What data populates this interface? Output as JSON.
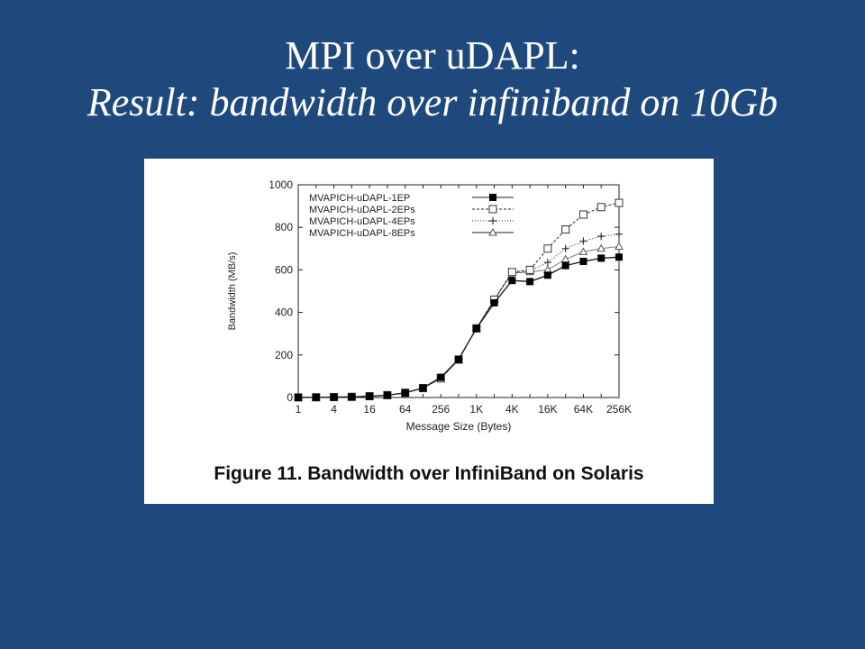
{
  "slide": {
    "title_line1": "MPI over uDAPL:",
    "title_line2": "Result: bandwidth over infiniband on 10Gb"
  },
  "figure": {
    "caption": "Figure 11. Bandwidth over InfiniBand on Solaris"
  },
  "chart_data": {
    "type": "line",
    "xlabel": "Message Size (Bytes)",
    "ylabel": "Bandwidth (MB/s)",
    "ylim": [
      0,
      1000
    ],
    "yticks": [
      0,
      200,
      400,
      600,
      800,
      1000
    ],
    "x": [
      "1",
      "2",
      "4",
      "8",
      "16",
      "32",
      "64",
      "128",
      "256",
      "512",
      "1K",
      "2K",
      "4K",
      "8K",
      "16K",
      "32K",
      "64K",
      "128K",
      "256K"
    ],
    "xtick_labels": [
      "1",
      "4",
      "16",
      "64",
      "256",
      "1K",
      "4K",
      "16K",
      "64K",
      "256K"
    ],
    "grid": false,
    "legend_position": "top-left",
    "series": [
      {
        "name": "MVAPICH-uDAPL-1EP",
        "marker": "filled-square",
        "dash": "solid",
        "values": [
          0.5,
          1,
          2,
          3,
          6,
          11,
          22,
          45,
          95,
          180,
          325,
          445,
          550,
          545,
          575,
          620,
          640,
          655,
          660
        ]
      },
      {
        "name": "MVAPICH-uDAPL-2EPs",
        "marker": "open-square",
        "dash": "dashed",
        "values": [
          0.5,
          1,
          2,
          3,
          6,
          11,
          22,
          44,
          90,
          178,
          325,
          460,
          590,
          600,
          700,
          790,
          860,
          895,
          915
        ]
      },
      {
        "name": "MVAPICH-uDAPL-4EPs",
        "marker": "plus",
        "dash": "dotted",
        "values": [
          0.5,
          1,
          2,
          3,
          6,
          11,
          22,
          44,
          90,
          178,
          325,
          460,
          585,
          595,
          635,
          700,
          735,
          758,
          768
        ]
      },
      {
        "name": "MVAPICH-uDAPL-8EPs",
        "marker": "triangle",
        "dash": "solid",
        "values": [
          0.5,
          1,
          2,
          3,
          6,
          11,
          22,
          44,
          90,
          178,
          325,
          460,
          585,
          590,
          600,
          650,
          685,
          700,
          710
        ]
      }
    ]
  }
}
